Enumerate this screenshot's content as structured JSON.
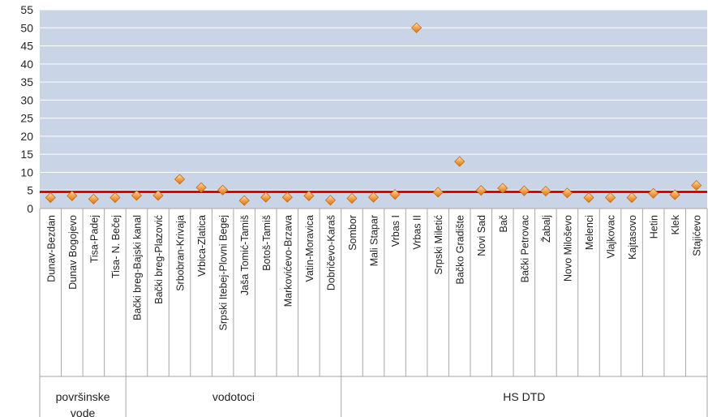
{
  "chart_data": {
    "type": "scatter",
    "title": "",
    "xlabel": "",
    "ylabel": "",
    "ylim": [
      0,
      55
    ],
    "yticks": [
      0,
      5,
      10,
      15,
      20,
      25,
      30,
      35,
      40,
      45,
      50,
      55
    ],
    "grid": true,
    "legend": "none",
    "categories": [
      "Dunav-Bezdan",
      "Dunav Bogojevo",
      "Tisa-Padej",
      "Tisa- N. Bečej",
      "Bački breg-Bajski kanal",
      "Bački breg-Plazović",
      "Srbobran-Krivaja",
      "Vrbica-Zlatica",
      "Srpski Itebej-Plovni Begej",
      "Jaša Tomić-Tamiš",
      "Botoš-Tamiš",
      "Markovićevo-Brzava",
      "Vatin-Moravica",
      "Dobričevo-Karaš",
      "Sombor",
      "Mali Stapar",
      "Vrbas I",
      "Vrbas II",
      "Srpski Miletić",
      "Bačko Gradište",
      "Novi Sad",
      "Bač",
      "Bački Petrovac",
      "Žabalj",
      "Novo Miloševo",
      "Melenci",
      "Vlajkovac",
      "Kajtasovo",
      "Hetin",
      "Klek",
      "Stajićevo"
    ],
    "groups": [
      {
        "label": "površinske vode",
        "start": 0,
        "end": 3
      },
      {
        "label": "vodotoci",
        "start": 4,
        "end": 13
      },
      {
        "label": "HS DTD",
        "start": 14,
        "end": 30
      }
    ],
    "series": [
      {
        "marker": "diamond",
        "color": "#f0a040",
        "values": [
          3.0,
          3.5,
          2.6,
          3.0,
          3.6,
          3.6,
          8.1,
          5.8,
          5.1,
          2.2,
          3.1,
          3.1,
          3.5,
          2.3,
          2.8,
          3.1,
          3.9,
          50,
          4.5,
          13,
          5.0,
          5.6,
          4.9,
          4.8,
          4.3,
          3.0,
          3.0,
          3.0,
          4.2,
          3.8,
          6.4
        ]
      }
    ],
    "reference_line": {
      "value": 4.6,
      "color": "#e00000"
    }
  }
}
